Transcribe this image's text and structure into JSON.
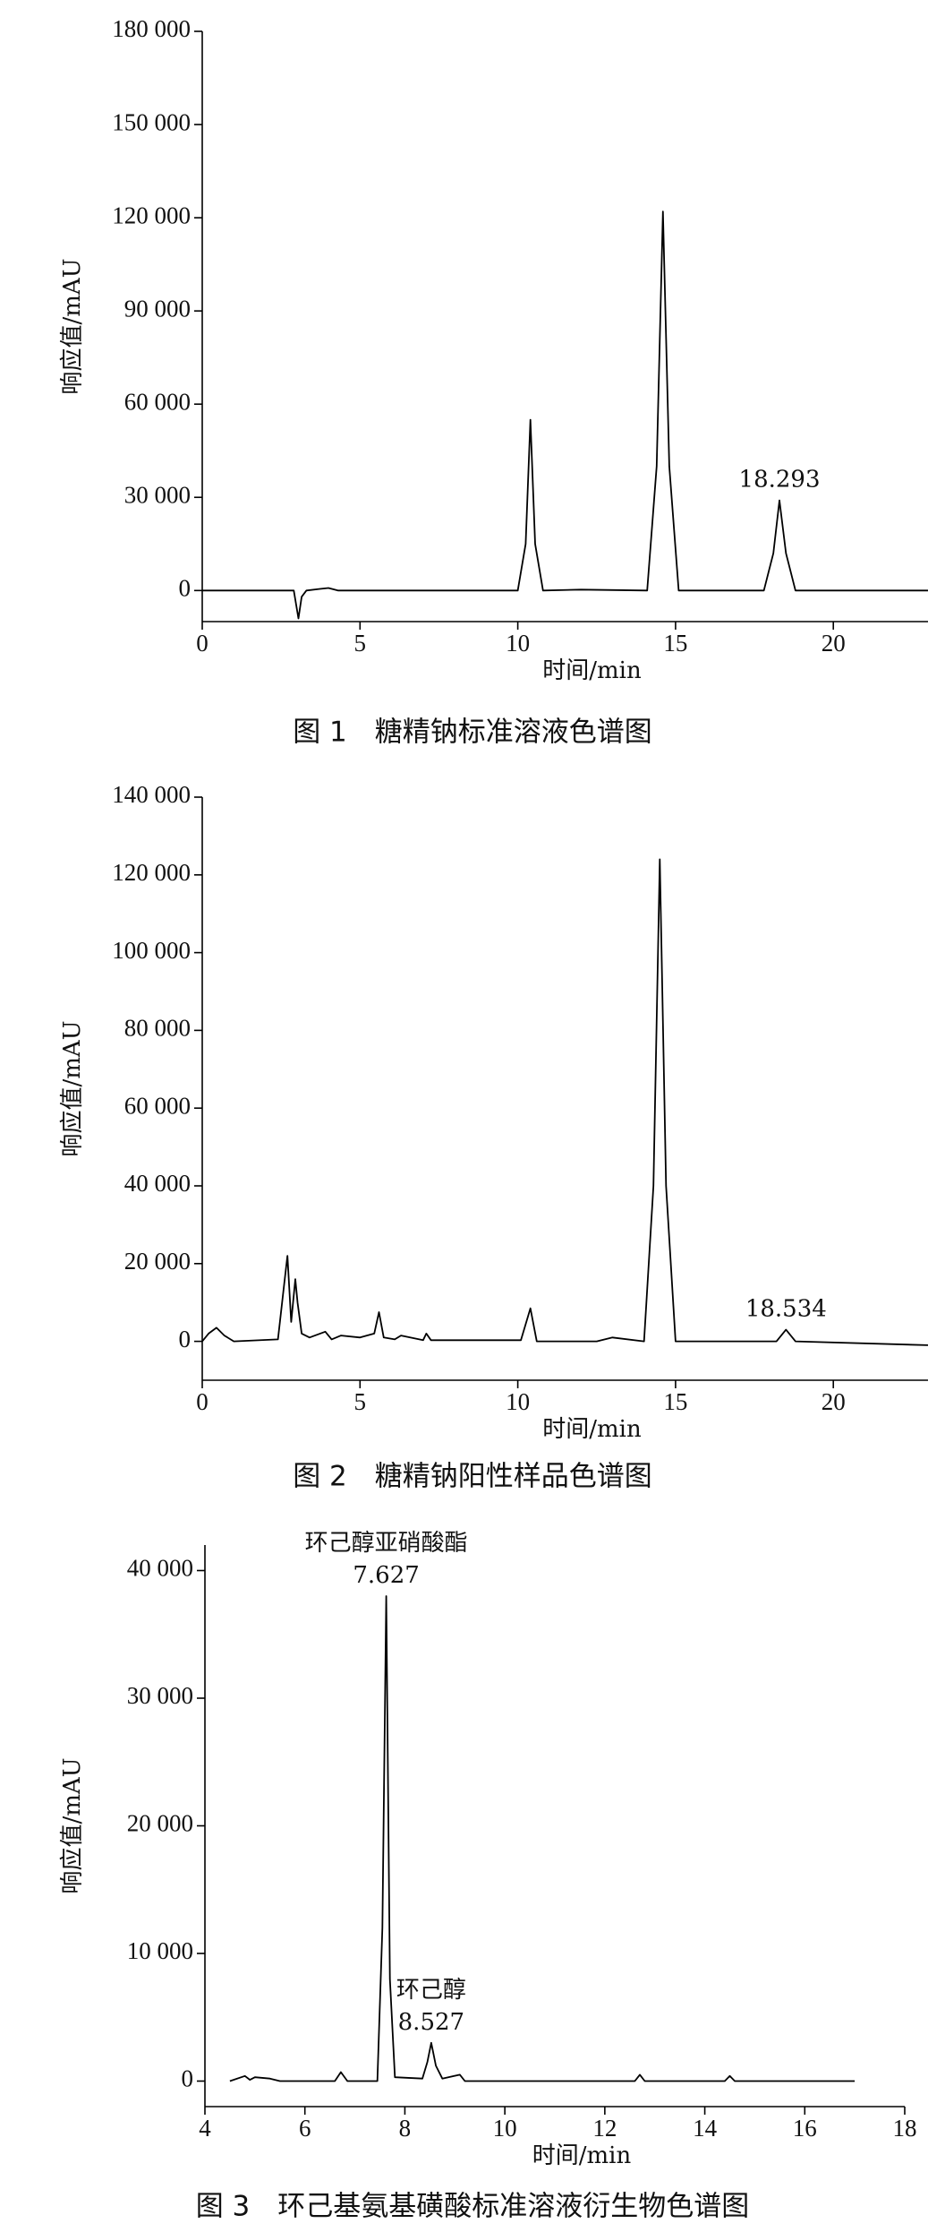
{
  "chart_data": [
    {
      "type": "line",
      "color": "#000000",
      "x_label": "时间/min",
      "y_label": "响应值/mAU",
      "caption": "图 1　糖精钠标准溶液色谱图",
      "x": [
        0,
        2.9,
        3.05,
        3.15,
        3.3,
        3.7,
        4.0,
        4.3,
        10.0,
        10.25,
        10.4,
        10.55,
        10.8,
        12.0,
        14.1,
        14.4,
        14.6,
        14.8,
        15.1,
        17.8,
        18.1,
        18.293,
        18.5,
        18.8,
        23
      ],
      "values": [
        0,
        0,
        -9000,
        -2000,
        0,
        500,
        800,
        0,
        0,
        15000,
        55000,
        15000,
        0,
        300,
        0,
        40000,
        122000,
        40000,
        0,
        0,
        12000,
        29000,
        12000,
        0,
        0
      ],
      "annotations": [
        [
          "18.293"
        ]
      ],
      "xlim": [
        0,
        23
      ],
      "xticks": [
        0,
        5,
        10,
        15,
        20
      ],
      "ylim": [
        -10000,
        180000
      ],
      "yticks": [
        0,
        {
          "value": 30000,
          "label": "30 000"
        },
        {
          "value": 60000,
          "label": "60 000"
        },
        {
          "value": 90000,
          "label": "90 000"
        },
        {
          "value": 120000,
          "label": "120 000"
        },
        {
          "value": 150000,
          "label": "150 000"
        },
        {
          "value": 180000,
          "label": "180 000"
        }
      ]
    },
    {
      "type": "line",
      "color": "#000000",
      "x_label": "时间/min",
      "y_label": "响应值/mAU",
      "caption": "图 2　糖精钠阳性样品色谱图",
      "x": [
        0,
        0.2,
        0.45,
        0.7,
        1.0,
        2.4,
        2.6,
        2.7,
        2.82,
        2.95,
        3.02,
        3.15,
        3.4,
        3.9,
        4.1,
        4.4,
        5.0,
        5.45,
        5.6,
        5.75,
        6.1,
        6.3,
        7.0,
        7.1,
        7.25,
        10.1,
        10.4,
        10.6,
        12.5,
        13.0,
        14.0,
        14.3,
        14.5,
        14.7,
        15.0,
        18.2,
        18.5,
        18.8,
        23
      ],
      "values": [
        0,
        2000,
        3500,
        1500,
        0,
        500,
        15000,
        22000,
        5000,
        16000,
        10000,
        2000,
        1000,
        2500,
        500,
        1500,
        1000,
        2000,
        7500,
        1000,
        500,
        1500,
        300,
        2000,
        300,
        300,
        8500,
        0,
        0,
        1000,
        0,
        40000,
        124000,
        40000,
        0,
        0,
        3000,
        0,
        -1000
      ],
      "annotations": [
        [
          "18.534"
        ]
      ],
      "xlim": [
        0,
        23
      ],
      "xticks": [
        0,
        5,
        10,
        15,
        20
      ],
      "ylim": [
        -10000,
        140000
      ],
      "yticks": [
        0,
        {
          "value": 20000,
          "label": "20 000"
        },
        {
          "value": 40000,
          "label": "40 000"
        },
        {
          "value": 60000,
          "label": "60 000"
        },
        {
          "value": 80000,
          "label": "80 000"
        },
        {
          "value": 100000,
          "label": "100 000"
        },
        {
          "value": 120000,
          "label": "120 000"
        },
        {
          "value": 140000,
          "label": "140 000"
        }
      ]
    },
    {
      "type": "line",
      "color": "#000000",
      "x_label": "时间/min",
      "y_label": "响应值/mAU",
      "caption": "图 3　环己基氨基磺酸标准溶液衍生物色谱图",
      "x": [
        4.5,
        4.8,
        4.9,
        5.0,
        5.3,
        5.5,
        6.6,
        6.72,
        6.85,
        7.45,
        7.55,
        7.627,
        7.7,
        7.8,
        8.35,
        8.45,
        8.527,
        8.62,
        8.75,
        9.1,
        9.2,
        12.6,
        12.7,
        12.8,
        14.4,
        14.5,
        14.6,
        17
      ],
      "values": [
        0,
        400,
        100,
        300,
        200,
        0,
        0,
        700,
        0,
        0,
        12000,
        38000,
        8000,
        300,
        200,
        1500,
        3000,
        1200,
        200,
        500,
        0,
        0,
        500,
        0,
        0,
        400,
        0,
        0
      ],
      "annotations": [
        [
          "环己醇亚硝酸酯",
          "7.627"
        ],
        [
          "环己醇",
          "8.527"
        ]
      ],
      "xlim": [
        4,
        18
      ],
      "xticks": [
        4,
        6,
        8,
        10,
        12,
        14,
        16,
        18
      ],
      "ylim": [
        -2000,
        42000
      ],
      "yticks": [
        0,
        {
          "value": 10000,
          "label": "10 000"
        },
        {
          "value": 20000,
          "label": "20 000"
        },
        {
          "value": 30000,
          "label": "30 000"
        },
        {
          "value": 40000,
          "label": "40 000"
        }
      ]
    }
  ]
}
